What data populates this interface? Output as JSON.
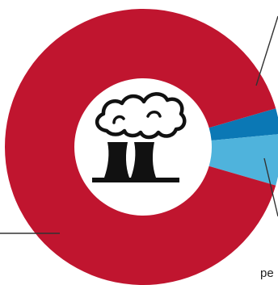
{
  "chart_data": {
    "type": "pie",
    "variant": "donut",
    "title": "",
    "slices": [
      {
        "label": "",
        "value": 91,
        "color": "#c0152f"
      },
      {
        "label": "",
        "value": 3,
        "color": "#0b78b5"
      },
      {
        "label": "",
        "value": 6,
        "color": "#4fb3dc"
      }
    ],
    "center_icon": "factory-smokestacks-icon",
    "annotations": [
      {
        "text": "pe",
        "slice": 2
      }
    ],
    "legend": "none",
    "grid": false
  }
}
